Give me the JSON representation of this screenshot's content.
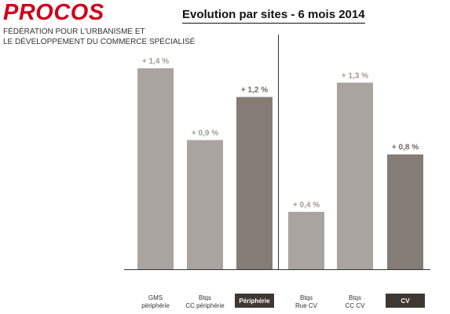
{
  "header": {
    "brand": "PROCOS",
    "subtitle_line1": "FÉDÉRATION POUR L'URBANISME ET",
    "subtitle_line2": "LE DÉVELOPPEMENT DU COMMERCE SPÉCIALISÉ"
  },
  "colors": {
    "brand": "#d0021b",
    "bar_light": "#a9a49f",
    "bar_dark": "#857c75",
    "label_light": "#a09b96",
    "label_dark": "#6f6862",
    "highlight_bg": "#3f3732"
  },
  "chart_data": {
    "type": "bar",
    "title": "Evolution par sites - 6 mois 2014",
    "categories": [
      {
        "lines": [
          "GMS",
          "périphérie"
        ],
        "highlight": false
      },
      {
        "lines": [
          "Btqs",
          "CC périphérie"
        ],
        "highlight": false
      },
      {
        "lines": [
          "Périphérie"
        ],
        "highlight": true
      },
      {
        "lines": [
          "Btqs",
          "Rue CV"
        ],
        "highlight": false
      },
      {
        "lines": [
          "Btqs",
          "CC CV"
        ],
        "highlight": false
      },
      {
        "lines": [
          "CV"
        ],
        "highlight": true
      }
    ],
    "values": [
      1.4,
      0.9,
      1.2,
      0.4,
      1.3,
      0.8
    ],
    "value_labels": [
      "+ 1,4 %",
      "+ 0,9 %",
      "+ 1,2 %",
      "+ 0,4 %",
      "+ 1,3 %",
      "+ 0,8 %"
    ],
    "ylim": [
      0,
      1.5
    ],
    "groups": [
      "Périphérie",
      "CV"
    ],
    "grid": false,
    "legend": "none"
  }
}
